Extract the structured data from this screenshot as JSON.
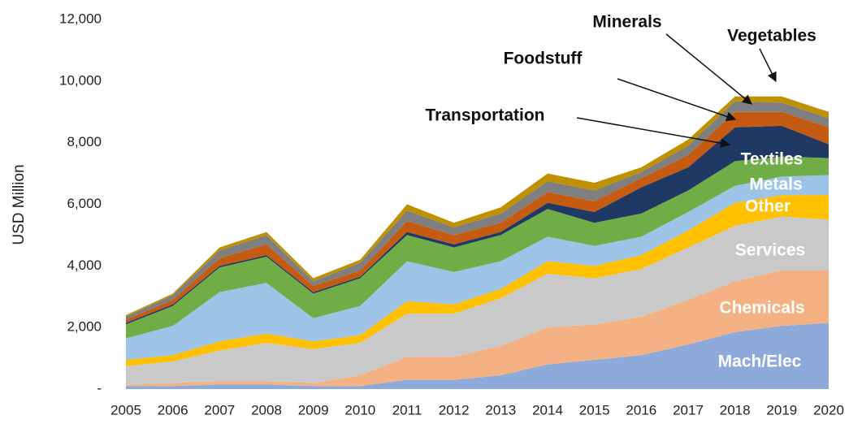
{
  "chart_data": {
    "type": "stacked_area",
    "y_label": "USD Million",
    "categories": [
      "2005",
      "2006",
      "2007",
      "2008",
      "2009",
      "2010",
      "2011",
      "2012",
      "2013",
      "2014",
      "2015",
      "2016",
      "2017",
      "2018",
      "2019",
      "2020"
    ],
    "ylim": [
      0,
      12000
    ],
    "yticks": [
      {
        "value": 0,
        "label": "-"
      },
      {
        "value": 2000,
        "label": "2,000"
      },
      {
        "value": 4000,
        "label": "4,000"
      },
      {
        "value": 6000,
        "label": "6,000"
      },
      {
        "value": 8000,
        "label": "8,000"
      },
      {
        "value": 10000,
        "label": "10,000"
      },
      {
        "value": 12000,
        "label": "12,000"
      }
    ],
    "series": [
      {
        "name": "Mach/Elec",
        "color": "#8eaadb",
        "values": [
          100,
          100,
          150,
          150,
          100,
          100,
          300,
          300,
          450,
          800,
          950,
          1100,
          1450,
          1850,
          2050,
          2150
        ]
      },
      {
        "name": "Chemicals",
        "color": "#f4b183",
        "values": [
          50,
          100,
          100,
          100,
          100,
          350,
          750,
          750,
          950,
          1200,
          1150,
          1250,
          1450,
          1650,
          1800,
          1700
        ]
      },
      {
        "name": "Services",
        "color": "#c9c9c9",
        "values": [
          600,
          700,
          1000,
          1250,
          1100,
          1050,
          1400,
          1400,
          1550,
          1750,
          1500,
          1550,
          1700,
          1800,
          1750,
          1650
        ]
      },
      {
        "name": "Other",
        "color": "#ffc000",
        "values": [
          200,
          200,
          300,
          300,
          250,
          250,
          400,
          300,
          300,
          400,
          400,
          450,
          550,
          750,
          700,
          800
        ]
      },
      {
        "name": "Metals",
        "color": "#9dc3e6",
        "values": [
          700,
          950,
          1600,
          1650,
          750,
          950,
          1300,
          1050,
          900,
          800,
          650,
          600,
          600,
          550,
          600,
          650
        ]
      },
      {
        "name": "Textiles",
        "color": "#70ad47",
        "values": [
          450,
          650,
          800,
          850,
          800,
          900,
          850,
          800,
          850,
          900,
          750,
          750,
          700,
          800,
          650,
          550
        ]
      },
      {
        "name": "Transportation",
        "color": "#203864",
        "values": [
          50,
          50,
          50,
          50,
          50,
          50,
          100,
          100,
          100,
          200,
          350,
          850,
          750,
          1100,
          1000,
          450
        ]
      },
      {
        "name": "Foodstuff",
        "color": "#c55a11",
        "values": [
          100,
          150,
          250,
          350,
          200,
          200,
          350,
          300,
          300,
          350,
          350,
          300,
          400,
          500,
          450,
          550
        ]
      },
      {
        "name": "Minerals",
        "color": "#7f7f7f",
        "values": [
          100,
          150,
          250,
          300,
          150,
          250,
          350,
          250,
          300,
          350,
          350,
          200,
          300,
          350,
          300,
          300
        ]
      },
      {
        "name": "Vegetables",
        "color": "#bf9000",
        "values": [
          50,
          50,
          100,
          100,
          100,
          100,
          200,
          150,
          200,
          250,
          250,
          150,
          200,
          150,
          200,
          200
        ]
      }
    ]
  }
}
